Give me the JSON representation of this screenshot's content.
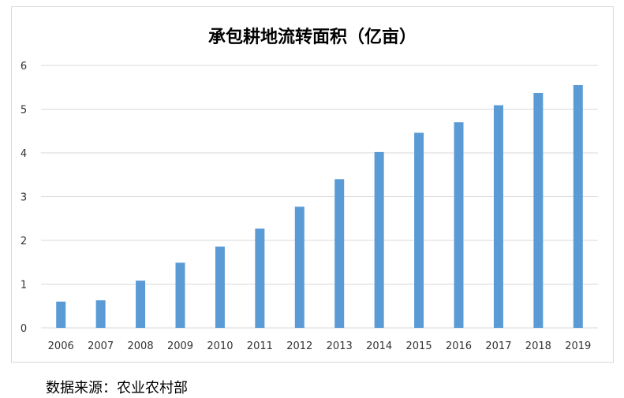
{
  "chart_data": {
    "type": "bar",
    "title": "承包耕地流转面积（亿亩）",
    "categories": [
      "2006",
      "2007",
      "2008",
      "2009",
      "2010",
      "2011",
      "2012",
      "2013",
      "2014",
      "2015",
      "2016",
      "2017",
      "2018",
      "2019"
    ],
    "values": [
      0.6,
      0.63,
      1.08,
      1.49,
      1.86,
      2.27,
      2.77,
      3.4,
      4.02,
      4.46,
      4.7,
      5.09,
      5.37,
      5.55
    ],
    "ylim": [
      0,
      6
    ],
    "yticks": [
      0,
      1,
      2,
      3,
      4,
      5,
      6
    ],
    "xlabel": "",
    "ylabel": "",
    "grid": true,
    "bar_color": "#5b9bd5"
  },
  "source_text": "数据来源：农业农村部"
}
